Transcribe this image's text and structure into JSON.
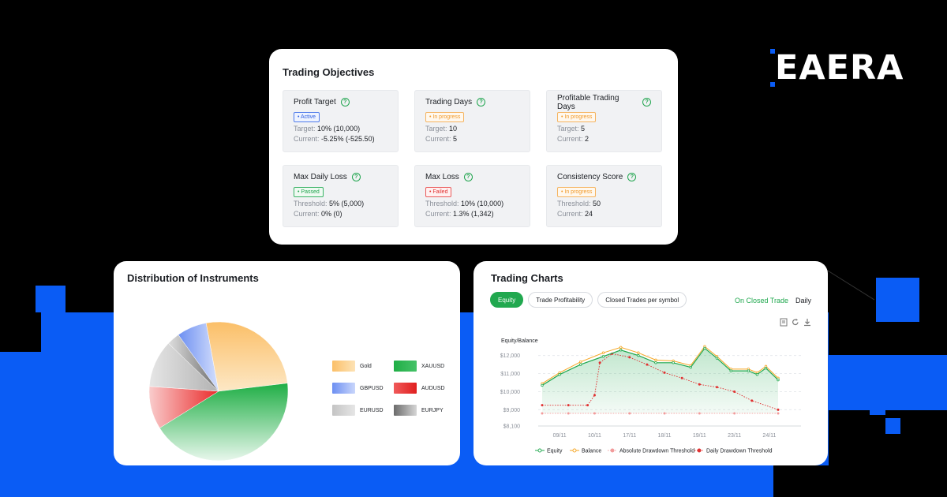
{
  "brand": {
    "name": "EAERA"
  },
  "objectives": {
    "title": "Trading Objectives",
    "items": [
      {
        "name": "Profit Target",
        "status": "• Active",
        "status_type": "active",
        "rows": [
          {
            "label": "Target:",
            "value": "10% (10,000)"
          },
          {
            "label": "Current:",
            "value": "-5.25%  (-525.50)"
          }
        ]
      },
      {
        "name": "Trading Days",
        "status": "• In progress",
        "status_type": "progress",
        "rows": [
          {
            "label": "Target:",
            "value": "10"
          },
          {
            "label": "Current:",
            "value": "5"
          }
        ]
      },
      {
        "name": "Profitable Trading Days",
        "status": "• In progress",
        "status_type": "progress",
        "rows": [
          {
            "label": "Target:",
            "value": "5"
          },
          {
            "label": "Current:",
            "value": "2"
          }
        ]
      },
      {
        "name": "Max Daily Loss",
        "status": "• Passed",
        "status_type": "passed",
        "rows": [
          {
            "label": "Threshold:",
            "value": "5% (5,000)"
          },
          {
            "label": "Current:",
            "value": "0% (0)"
          }
        ]
      },
      {
        "name": "Max Loss",
        "status": "• Failed",
        "status_type": "failed",
        "rows": [
          {
            "label": "Threshold:",
            "value": "10% (10,000)"
          },
          {
            "label": "Current:",
            "value": "1.3% (1,342)"
          }
        ]
      },
      {
        "name": "Consistency Score",
        "status": "• In progress",
        "status_type": "progress",
        "rows": [
          {
            "label": "Threshold:",
            "value": "50"
          },
          {
            "label": "Current:",
            "value": "24"
          }
        ]
      }
    ]
  },
  "distribution": {
    "title": "Distribution of Instruments",
    "legend": [
      {
        "label": "Gold",
        "color": "#fbbf68"
      },
      {
        "label": "XAUUSD",
        "color": "#1fae45"
      },
      {
        "label": "GBPUSD",
        "color": "#7b9cf4"
      },
      {
        "label": "AUDUSD",
        "color": "#ea2a2a"
      },
      {
        "label": "EURUSD",
        "color": "#bdbdbd"
      },
      {
        "label": "EURJPY",
        "color": "#6b6b6b"
      }
    ]
  },
  "trading_charts": {
    "title": "Trading Charts",
    "tabs": [
      "Equity",
      "Trade Profitability",
      "Closed Trades per symbol"
    ],
    "mode_on": "On Closed Trade",
    "mode_period": "Daily",
    "y_label": "Equity/Balance",
    "legend": [
      "Equity",
      "Balance",
      "Absolute Drawdown Threshold",
      "Daily Drawdown Threshold"
    ]
  },
  "chart_data": [
    {
      "type": "pie",
      "title": "Distribution of Instruments",
      "categories": [
        "Gold",
        "XAUUSD",
        "GBPUSD",
        "AUDUSD",
        "EURUSD",
        "EURJPY"
      ],
      "values": [
        26,
        43,
        7,
        10,
        11,
        3
      ]
    },
    {
      "type": "line",
      "title": "Trading Charts",
      "ylabel": "Equity/Balance",
      "ylim": [
        8100,
        12900
      ],
      "y_ticks": [
        "$8,100",
        "$9,000",
        "$10,000",
        "$11,000",
        "$12,000"
      ],
      "y_tick_values": [
        8100,
        9000,
        10000,
        11000,
        12000
      ],
      "x_ticks": [
        "09/11",
        "10/11",
        "17/11",
        "18/11",
        "19/11",
        "23/11",
        "24/11"
      ],
      "x_tick_positions": [
        1,
        3,
        5,
        7,
        9,
        11,
        13
      ],
      "series": [
        {
          "name": "Equity",
          "color": "#21a84f",
          "x": [
            0,
            1,
            2.2,
            3.5,
            4.5,
            5.5,
            6.5,
            7.5,
            8.5,
            9.3,
            10,
            10.8,
            11.8,
            12.3,
            12.8,
            13.5
          ],
          "y": [
            10350,
            10950,
            11500,
            11950,
            12300,
            12000,
            11600,
            11600,
            11350,
            12400,
            11850,
            11150,
            11150,
            10950,
            11300,
            10650
          ]
        },
        {
          "name": "Balance",
          "color": "#f5a623",
          "x": [
            0,
            1,
            2.2,
            3.5,
            4.5,
            5.5,
            6.5,
            7.5,
            8.5,
            9.3,
            10,
            10.8,
            11.8,
            12.3,
            12.8,
            13.5
          ],
          "y": [
            10450,
            11050,
            11650,
            12150,
            12450,
            12150,
            11750,
            11700,
            11450,
            12500,
            11950,
            11250,
            11250,
            11050,
            11400,
            10750
          ]
        },
        {
          "name": "Absolute Drawdown Threshold",
          "color": "#f29b9b",
          "x": [
            0,
            1.5,
            3,
            5,
            7,
            9,
            11,
            13.5
          ],
          "y": [
            8800,
            8800,
            8800,
            8800,
            8800,
            8800,
            8800,
            8800
          ]
        },
        {
          "name": "Daily Drawdown Threshold",
          "color": "#e03131",
          "x": [
            0,
            1.5,
            2.6,
            3,
            3.3,
            4,
            5,
            6,
            7,
            8,
            9,
            10,
            11,
            12,
            13.5
          ],
          "y": [
            9250,
            9250,
            9250,
            9800,
            11600,
            12100,
            11900,
            11500,
            11050,
            10750,
            10400,
            10250,
            10000,
            9500,
            9000
          ]
        }
      ]
    }
  ]
}
